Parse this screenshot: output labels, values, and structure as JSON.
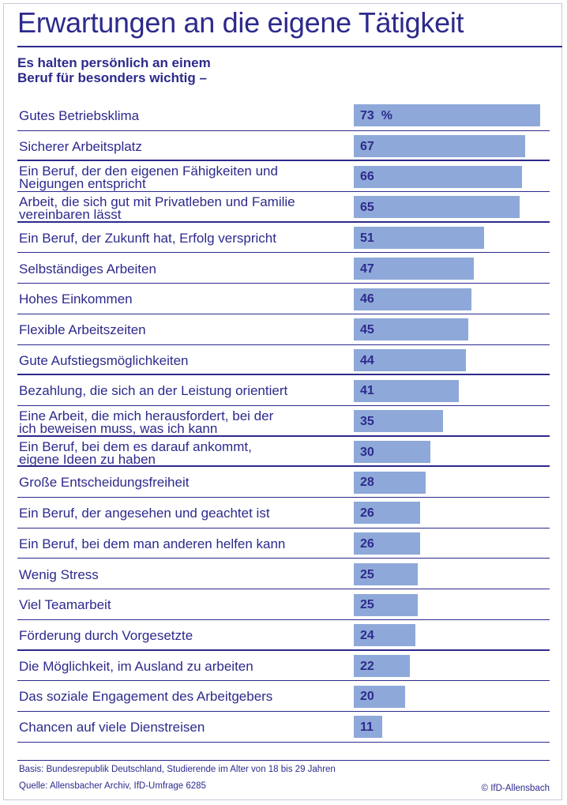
{
  "header": {
    "title": "Erwartungen an die eigene Tätigkeit",
    "subtitle_line1": "Es halten persönlich an einem",
    "subtitle_line2": "Beruf für besonders wichtig –"
  },
  "chart_data": {
    "type": "bar",
    "orientation": "horizontal",
    "title": "Erwartungen an die eigene Tätigkeit",
    "unit": "%",
    "categories": [
      [
        "Gutes Betriebsklima"
      ],
      [
        "Sicherer Arbeitsplatz"
      ],
      [
        "Ein Beruf, der den eigenen Fähigkeiten und",
        "Neigungen entspricht"
      ],
      [
        "Arbeit, die sich gut mit Privatleben und Familie",
        "vereinbaren lässt"
      ],
      [
        "Ein Beruf, der Zukunft hat, Erfolg verspricht"
      ],
      [
        "Selbständiges Arbeiten"
      ],
      [
        "Hohes Einkommen"
      ],
      [
        "Flexible Arbeitszeiten"
      ],
      [
        "Gute Aufstiegsmöglichkeiten"
      ],
      [
        "Bezahlung, die sich an der Leistung orientiert"
      ],
      [
        "Eine Arbeit, die mich herausfordert, bei der",
        "ich beweisen muss, was ich kann"
      ],
      [
        "Ein Beruf, bei dem es darauf ankommt,",
        "eigene Ideen zu haben"
      ],
      [
        "Große Entscheidungsfreiheit"
      ],
      [
        "Ein Beruf, der angesehen und geachtet ist"
      ],
      [
        "Ein Beruf, bei dem man anderen helfen kann"
      ],
      [
        "Wenig Stress"
      ],
      [
        "Viel Teamarbeit"
      ],
      [
        "Förderung durch Vorgesetzte"
      ],
      [
        "Die Möglichkeit, im Ausland zu arbeiten"
      ],
      [
        "Das soziale Engagement des Arbeitgebers"
      ],
      [
        "Chancen auf viele Dienstreisen"
      ]
    ],
    "values": [
      73,
      67,
      66,
      65,
      51,
      47,
      46,
      45,
      44,
      41,
      35,
      30,
      28,
      26,
      26,
      25,
      25,
      24,
      22,
      20,
      11
    ],
    "value_labels": [
      "73  %",
      "67",
      "66",
      "65",
      "51",
      "47",
      "46",
      "45",
      "44",
      "41",
      "35",
      "30",
      "28",
      "26",
      "26",
      "25",
      "25",
      "24",
      "22",
      "20",
      "11"
    ],
    "group_end_rows": [
      1,
      3,
      8,
      10,
      11,
      17
    ],
    "xlim": [
      0,
      73
    ],
    "bar_color": "#8ea9d9",
    "text_color": "#2d2a8c"
  },
  "footer": {
    "basis": "Basis: Bundesrepublik Deutschland, Studierende im Alter von 18 bis 29 Jahren",
    "source": "Quelle: Allensbacher Archiv, IfD-Umfrage 6285",
    "copyright": "© IfD-Allensbach"
  }
}
